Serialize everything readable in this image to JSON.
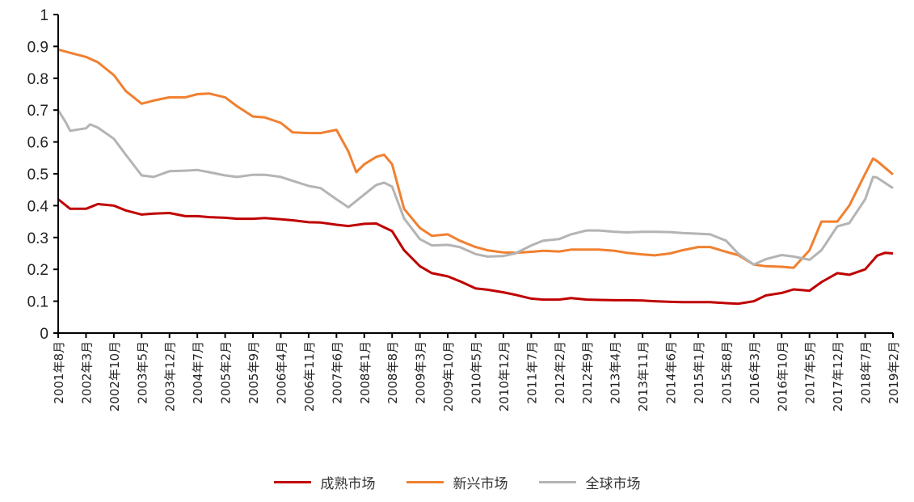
{
  "chart_data": {
    "type": "line",
    "title": "",
    "xlabel": "",
    "ylabel": "",
    "ylim": [
      0,
      1
    ],
    "yticks": [
      "0",
      "0.1",
      "0.2",
      "0.3",
      "0.4",
      "0.5",
      "0.6",
      "0.7",
      "0.8",
      "0.9",
      "1"
    ],
    "x_unit": "months since 2001-08",
    "xlim": [
      0,
      210
    ],
    "xtick_step_months": 7,
    "xticks": [
      "2001年8月",
      "2002年3月",
      "2002年10月",
      "2003年5月",
      "2003年12月",
      "2004年7月",
      "2005年2月",
      "2005年9月",
      "2006年4月",
      "2006年11月",
      "2007年6月",
      "2008年1月",
      "2008年8月",
      "2009年3月",
      "2009年10月",
      "2010年5月",
      "2010年12月",
      "2011年7月",
      "2012年2月",
      "2012年9月",
      "2013年4月",
      "2013年11月",
      "2014年6月",
      "2015年1月",
      "2015年8月",
      "2016年3月",
      "2016年10月",
      "2017年5月",
      "2017年12月",
      "2018年7月",
      "2019年2月"
    ],
    "grid": false,
    "legend_position": "bottom",
    "series": [
      {
        "name": "成熟市场",
        "color": "#C00000",
        "points": [
          [
            0,
            0.42
          ],
          [
            3,
            0.39
          ],
          [
            7,
            0.39
          ],
          [
            10,
            0.405
          ],
          [
            14,
            0.4
          ],
          [
            17,
            0.385
          ],
          [
            21,
            0.372
          ],
          [
            24,
            0.375
          ],
          [
            28,
            0.377
          ],
          [
            32,
            0.367
          ],
          [
            35,
            0.367
          ],
          [
            38,
            0.364
          ],
          [
            42,
            0.362
          ],
          [
            45,
            0.359
          ],
          [
            49,
            0.359
          ],
          [
            52,
            0.361
          ],
          [
            56,
            0.357
          ],
          [
            59,
            0.354
          ],
          [
            63,
            0.348
          ],
          [
            66,
            0.347
          ],
          [
            70,
            0.34
          ],
          [
            73,
            0.336
          ],
          [
            77,
            0.343
          ],
          [
            80,
            0.344
          ],
          [
            84,
            0.32
          ],
          [
            87,
            0.26
          ],
          [
            91,
            0.21
          ],
          [
            94,
            0.188
          ],
          [
            98,
            0.178
          ],
          [
            101,
            0.163
          ],
          [
            105,
            0.14
          ],
          [
            108,
            0.136
          ],
          [
            112,
            0.128
          ],
          [
            115,
            0.12
          ],
          [
            119,
            0.108
          ],
          [
            122,
            0.105
          ],
          [
            126,
            0.105
          ],
          [
            129,
            0.11
          ],
          [
            133,
            0.105
          ],
          [
            136,
            0.104
          ],
          [
            140,
            0.103
          ],
          [
            143,
            0.103
          ],
          [
            147,
            0.102
          ],
          [
            150,
            0.1
          ],
          [
            154,
            0.098
          ],
          [
            157,
            0.097
          ],
          [
            161,
            0.097
          ],
          [
            164,
            0.097
          ],
          [
            168,
            0.094
          ],
          [
            171,
            0.092
          ],
          [
            175,
            0.1
          ],
          [
            178,
            0.118
          ],
          [
            182,
            0.126
          ],
          [
            185,
            0.137
          ],
          [
            189,
            0.133
          ],
          [
            192,
            0.16
          ],
          [
            196,
            0.188
          ],
          [
            199,
            0.183
          ],
          [
            203,
            0.2
          ],
          [
            206,
            0.243
          ],
          [
            208,
            0.252
          ],
          [
            210,
            0.25
          ]
        ]
      },
      {
        "name": "新兴市场",
        "color": "#F08030",
        "points": [
          [
            0,
            0.89
          ],
          [
            3,
            0.88
          ],
          [
            7,
            0.867
          ],
          [
            10,
            0.85
          ],
          [
            14,
            0.81
          ],
          [
            17,
            0.76
          ],
          [
            21,
            0.72
          ],
          [
            24,
            0.73
          ],
          [
            28,
            0.74
          ],
          [
            32,
            0.74
          ],
          [
            35,
            0.75
          ],
          [
            38,
            0.752
          ],
          [
            42,
            0.74
          ],
          [
            45,
            0.712
          ],
          [
            49,
            0.68
          ],
          [
            52,
            0.677
          ],
          [
            56,
            0.66
          ],
          [
            59,
            0.63
          ],
          [
            63,
            0.628
          ],
          [
            66,
            0.628
          ],
          [
            70,
            0.638
          ],
          [
            73,
            0.57
          ],
          [
            75,
            0.505
          ],
          [
            77,
            0.53
          ],
          [
            80,
            0.553
          ],
          [
            82,
            0.56
          ],
          [
            84,
            0.53
          ],
          [
            87,
            0.39
          ],
          [
            91,
            0.33
          ],
          [
            94,
            0.305
          ],
          [
            98,
            0.31
          ],
          [
            101,
            0.29
          ],
          [
            105,
            0.27
          ],
          [
            108,
            0.26
          ],
          [
            112,
            0.253
          ],
          [
            115,
            0.252
          ],
          [
            119,
            0.255
          ],
          [
            122,
            0.258
          ],
          [
            126,
            0.256
          ],
          [
            129,
            0.262
          ],
          [
            133,
            0.262
          ],
          [
            136,
            0.262
          ],
          [
            140,
            0.258
          ],
          [
            143,
            0.252
          ],
          [
            147,
            0.247
          ],
          [
            150,
            0.244
          ],
          [
            154,
            0.25
          ],
          [
            157,
            0.26
          ],
          [
            161,
            0.27
          ],
          [
            164,
            0.27
          ],
          [
            168,
            0.255
          ],
          [
            171,
            0.245
          ],
          [
            175,
            0.215
          ],
          [
            178,
            0.21
          ],
          [
            182,
            0.208
          ],
          [
            185,
            0.205
          ],
          [
            189,
            0.26
          ],
          [
            192,
            0.35
          ],
          [
            196,
            0.35
          ],
          [
            199,
            0.4
          ],
          [
            203,
            0.5
          ],
          [
            205,
            0.548
          ],
          [
            206,
            0.54
          ],
          [
            210,
            0.498
          ]
        ]
      },
      {
        "name": "全球市场",
        "color": "#B4B4B4",
        "points": [
          [
            0,
            0.7
          ],
          [
            2,
            0.66
          ],
          [
            3,
            0.635
          ],
          [
            7,
            0.643
          ],
          [
            8,
            0.655
          ],
          [
            10,
            0.645
          ],
          [
            14,
            0.61
          ],
          [
            17,
            0.56
          ],
          [
            21,
            0.495
          ],
          [
            24,
            0.49
          ],
          [
            28,
            0.508
          ],
          [
            32,
            0.51
          ],
          [
            35,
            0.512
          ],
          [
            38,
            0.505
          ],
          [
            42,
            0.495
          ],
          [
            45,
            0.49
          ],
          [
            49,
            0.497
          ],
          [
            52,
            0.497
          ],
          [
            56,
            0.49
          ],
          [
            59,
            0.478
          ],
          [
            63,
            0.462
          ],
          [
            66,
            0.455
          ],
          [
            70,
            0.42
          ],
          [
            73,
            0.395
          ],
          [
            77,
            0.435
          ],
          [
            80,
            0.465
          ],
          [
            82,
            0.472
          ],
          [
            84,
            0.46
          ],
          [
            87,
            0.36
          ],
          [
            91,
            0.295
          ],
          [
            94,
            0.275
          ],
          [
            98,
            0.277
          ],
          [
            101,
            0.27
          ],
          [
            105,
            0.248
          ],
          [
            108,
            0.24
          ],
          [
            112,
            0.242
          ],
          [
            115,
            0.25
          ],
          [
            119,
            0.275
          ],
          [
            122,
            0.29
          ],
          [
            126,
            0.295
          ],
          [
            129,
            0.31
          ],
          [
            133,
            0.322
          ],
          [
            136,
            0.322
          ],
          [
            140,
            0.318
          ],
          [
            143,
            0.316
          ],
          [
            147,
            0.318
          ],
          [
            150,
            0.318
          ],
          [
            154,
            0.317
          ],
          [
            157,
            0.314
          ],
          [
            161,
            0.312
          ],
          [
            164,
            0.31
          ],
          [
            168,
            0.29
          ],
          [
            171,
            0.25
          ],
          [
            175,
            0.215
          ],
          [
            178,
            0.232
          ],
          [
            182,
            0.245
          ],
          [
            185,
            0.24
          ],
          [
            189,
            0.23
          ],
          [
            192,
            0.26
          ],
          [
            196,
            0.335
          ],
          [
            199,
            0.345
          ],
          [
            203,
            0.42
          ],
          [
            205,
            0.49
          ],
          [
            206,
            0.488
          ],
          [
            210,
            0.455
          ]
        ]
      }
    ]
  }
}
